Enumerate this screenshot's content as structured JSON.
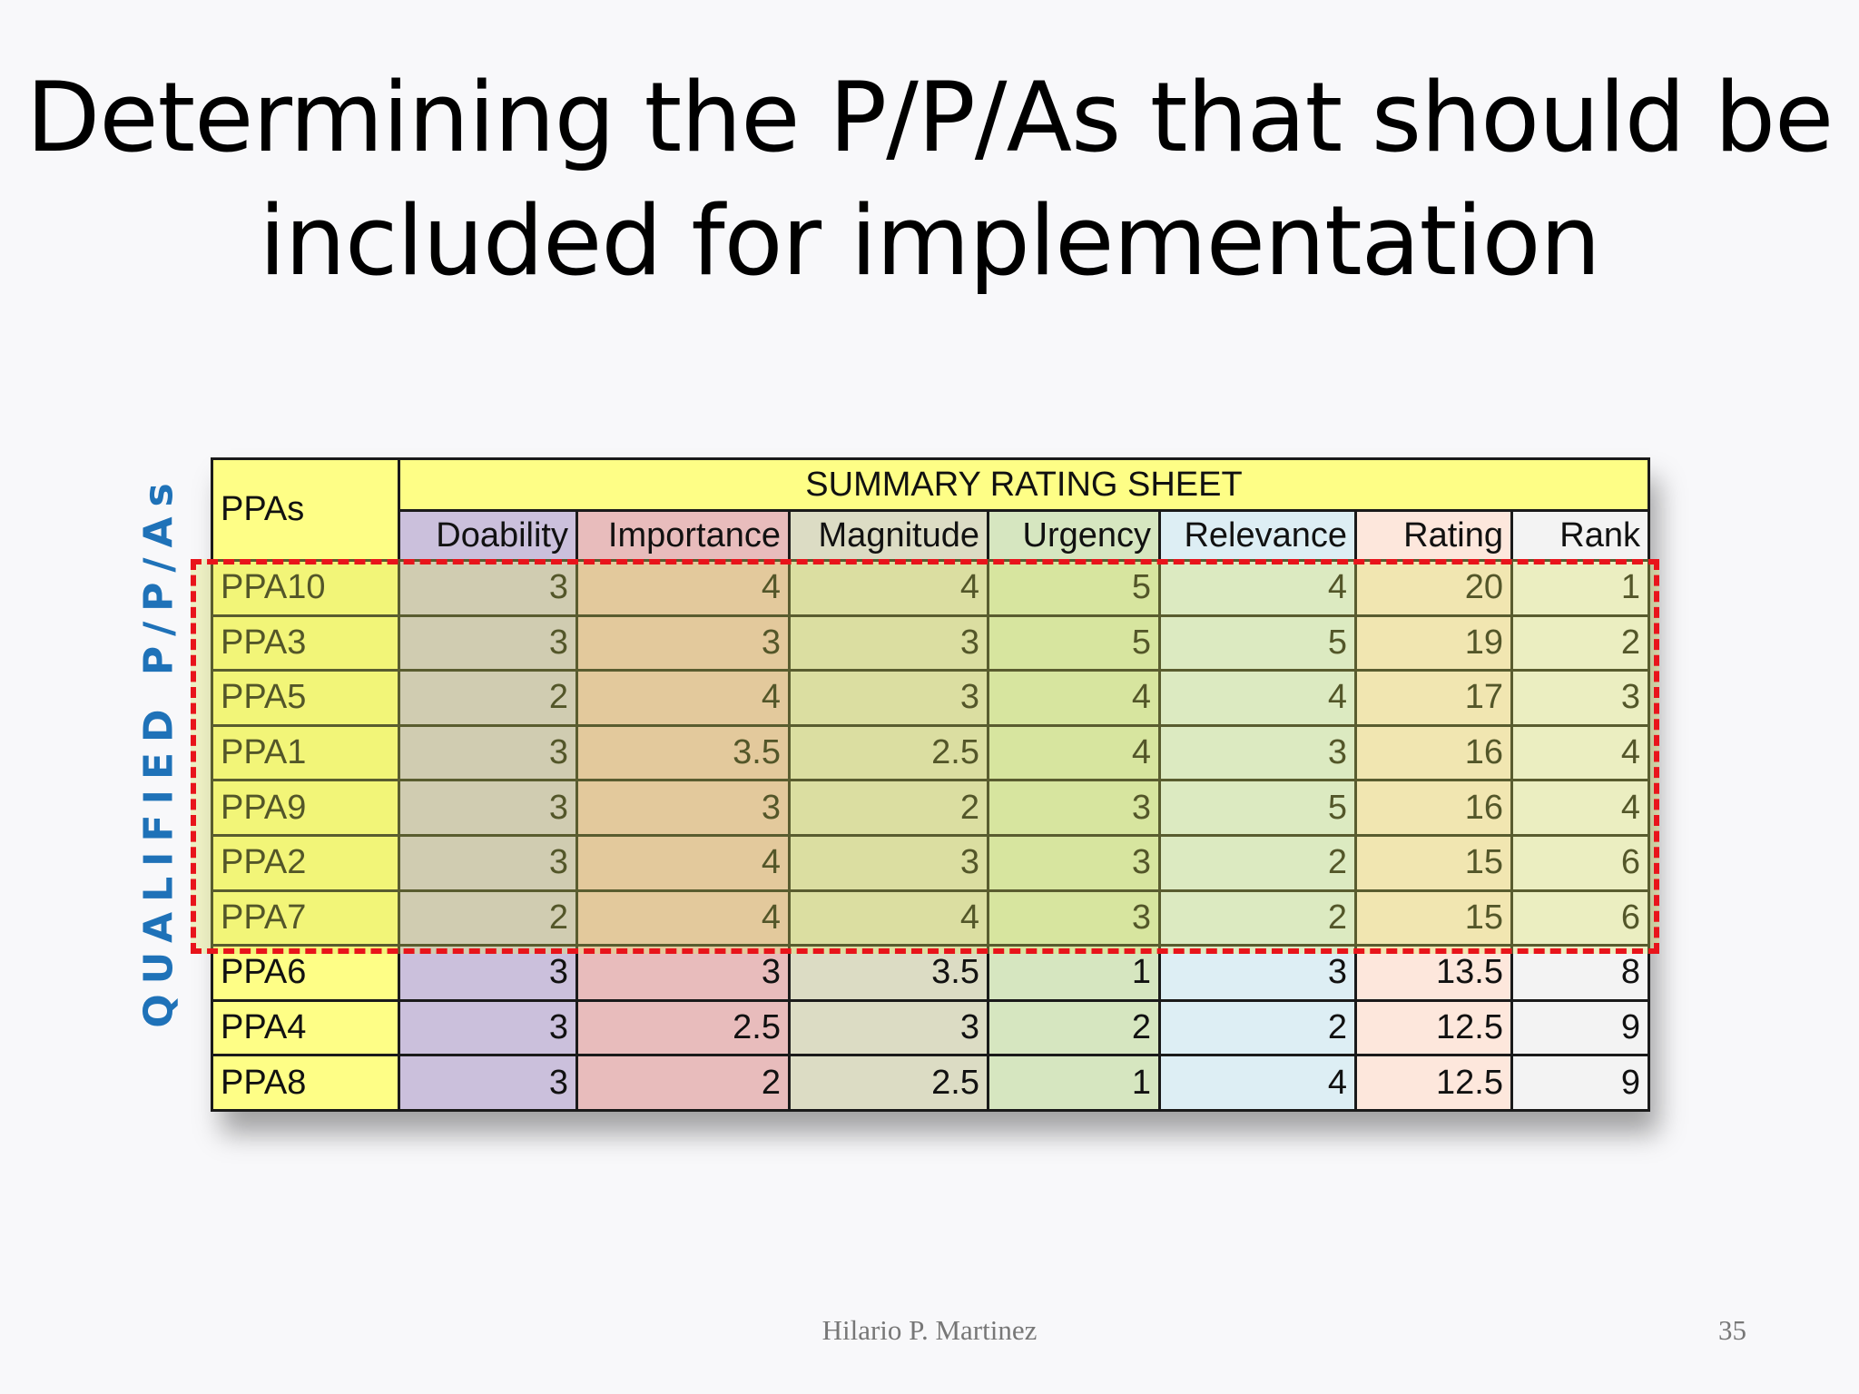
{
  "slide": {
    "title_line1": "Determining the P/P/As that should be",
    "title_line2": "included for implementation",
    "side_label": "QUALIFIED P/P/As",
    "footer_author": "Hilario P. Martinez",
    "page_number": "35"
  },
  "table": {
    "first_header": "PPAs",
    "group_header": "SUMMARY RATING SHEET",
    "columns": [
      "Doability",
      "Importance",
      "Magnitude",
      "Urgency",
      "Relevance",
      "Rating",
      "Rank"
    ],
    "rows": [
      {
        "ppa": "PPA10",
        "doability": "3",
        "importance": "4",
        "magnitude": "4",
        "urgency": "5",
        "relevance": "4",
        "rating": "20",
        "rank": "1"
      },
      {
        "ppa": "PPA3",
        "doability": "3",
        "importance": "3",
        "magnitude": "3",
        "urgency": "5",
        "relevance": "5",
        "rating": "19",
        "rank": "2"
      },
      {
        "ppa": "PPA5",
        "doability": "2",
        "importance": "4",
        "magnitude": "3",
        "urgency": "4",
        "relevance": "4",
        "rating": "17",
        "rank": "3"
      },
      {
        "ppa": "PPA1",
        "doability": "3",
        "importance": "3.5",
        "magnitude": "2.5",
        "urgency": "4",
        "relevance": "3",
        "rating": "16",
        "rank": "4"
      },
      {
        "ppa": "PPA9",
        "doability": "3",
        "importance": "3",
        "magnitude": "2",
        "urgency": "3",
        "relevance": "5",
        "rating": "16",
        "rank": "4"
      },
      {
        "ppa": "PPA2",
        "doability": "3",
        "importance": "4",
        "magnitude": "3",
        "urgency": "3",
        "relevance": "2",
        "rating": "15",
        "rank": "6"
      },
      {
        "ppa": "PPA7",
        "doability": "2",
        "importance": "4",
        "magnitude": "4",
        "urgency": "3",
        "relevance": "2",
        "rating": "15",
        "rank": "6"
      },
      {
        "ppa": "PPA6",
        "doability": "3",
        "importance": "3",
        "magnitude": "3.5",
        "urgency": "1",
        "relevance": "3",
        "rating": "13.5",
        "rank": "8"
      },
      {
        "ppa": "PPA4",
        "doability": "3",
        "importance": "2.5",
        "magnitude": "3",
        "urgency": "2",
        "relevance": "2",
        "rating": "12.5",
        "rank": "9"
      },
      {
        "ppa": "PPA8",
        "doability": "3",
        "importance": "2",
        "magnitude": "2.5",
        "urgency": "1",
        "relevance": "4",
        "rating": "12.5",
        "rank": "9"
      }
    ]
  },
  "colors": {
    "highlight_border": "#e8141b",
    "side_label": "#1f72b8",
    "header_yellow": "#fefe86"
  }
}
